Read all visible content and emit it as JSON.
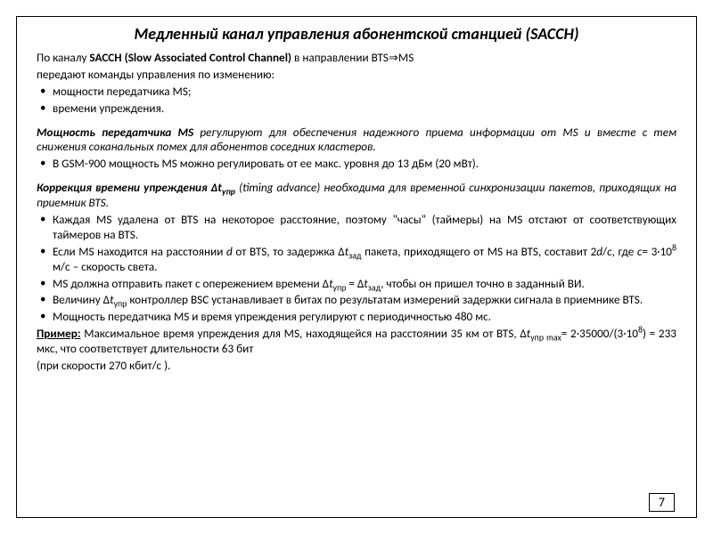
{
  "title": "Медленный канал управления абонентской станцией (SACCH)",
  "intro_line1_a": "По каналу ",
  "intro_line1_b": "SACCH (Slow Associated Control Channel)",
  "intro_line1_c": " в направлении BTS⇒MS",
  "intro_line2": "передают команды управления по изменению:",
  "intro_bullets": {
    "b1": "мощности передатчика MS;",
    "b2": "времени упреждения."
  },
  "power_heading": "Мощность передатчика MS",
  "power_text": " регулируют для обеспечения надежного приема информации от MS и вместе с тем снижения соканальных помех для абонентов соседних кластеров.",
  "power_bullet": "В GSM-900 мощность MS можно регулировать от ее макс. уровня до 13 дБм (20 мВт).",
  "timing_heading_a": "Коррекция времени упреждения ",
  "timing_heading_b": "Δt",
  "timing_heading_sub": "упр",
  "timing_text": " (timing advance) необходима для временной синхронизации пакетов, приходящих на приемник BTS.",
  "timing_b1": "Каждая MS удалена от BTS на некоторое расстояние, поэтому \"часы\" (таймеры) на MS отстают от соответствующих таймеров на BTS.",
  "page_number": "7",
  "t2": {
    "a": "Если MS находится на расстоянии ",
    "b": " от BTS, то задержка Δ",
    "sub1": "зад",
    "c": " пакета, приходящего от MS на BTS, составит 2",
    "d": "/",
    "e": ", где ",
    "f": "= 3·10",
    "g": " м/с – скорость света."
  },
  "t3": {
    "a": "MS должна отправить пакет с опережением времени Δ",
    "sub1": "упр",
    "b": " = Δ",
    "sub2": "зад",
    "c": ", чтобы он пришел точно в заданный ВИ."
  },
  "t4": {
    "a": "Величину Δ",
    "sub1": "упр",
    "b": " контроллер BSC устанавливает в битах по результатам измерений задержки сигнала в приемнике BTS."
  },
  "t5": "Мощность передатчика MS и время упреждения регулируют с периодичностью 480 мс.",
  "example": {
    "label": "Пример:",
    "a": " Максимальное время упреждения для MS, находящейся на расстоянии 35 км от BTS, Δ",
    "sub1": "упр max",
    "b": "= 2·35000/(3·10",
    "c": ") = 233 мкс, что соответствует длительности 63 бит",
    "d": "(при скорости 270 кбит/с )."
  },
  "letters": {
    "d": "d",
    "c": "c",
    "t": "t"
  },
  "sup8": "8"
}
